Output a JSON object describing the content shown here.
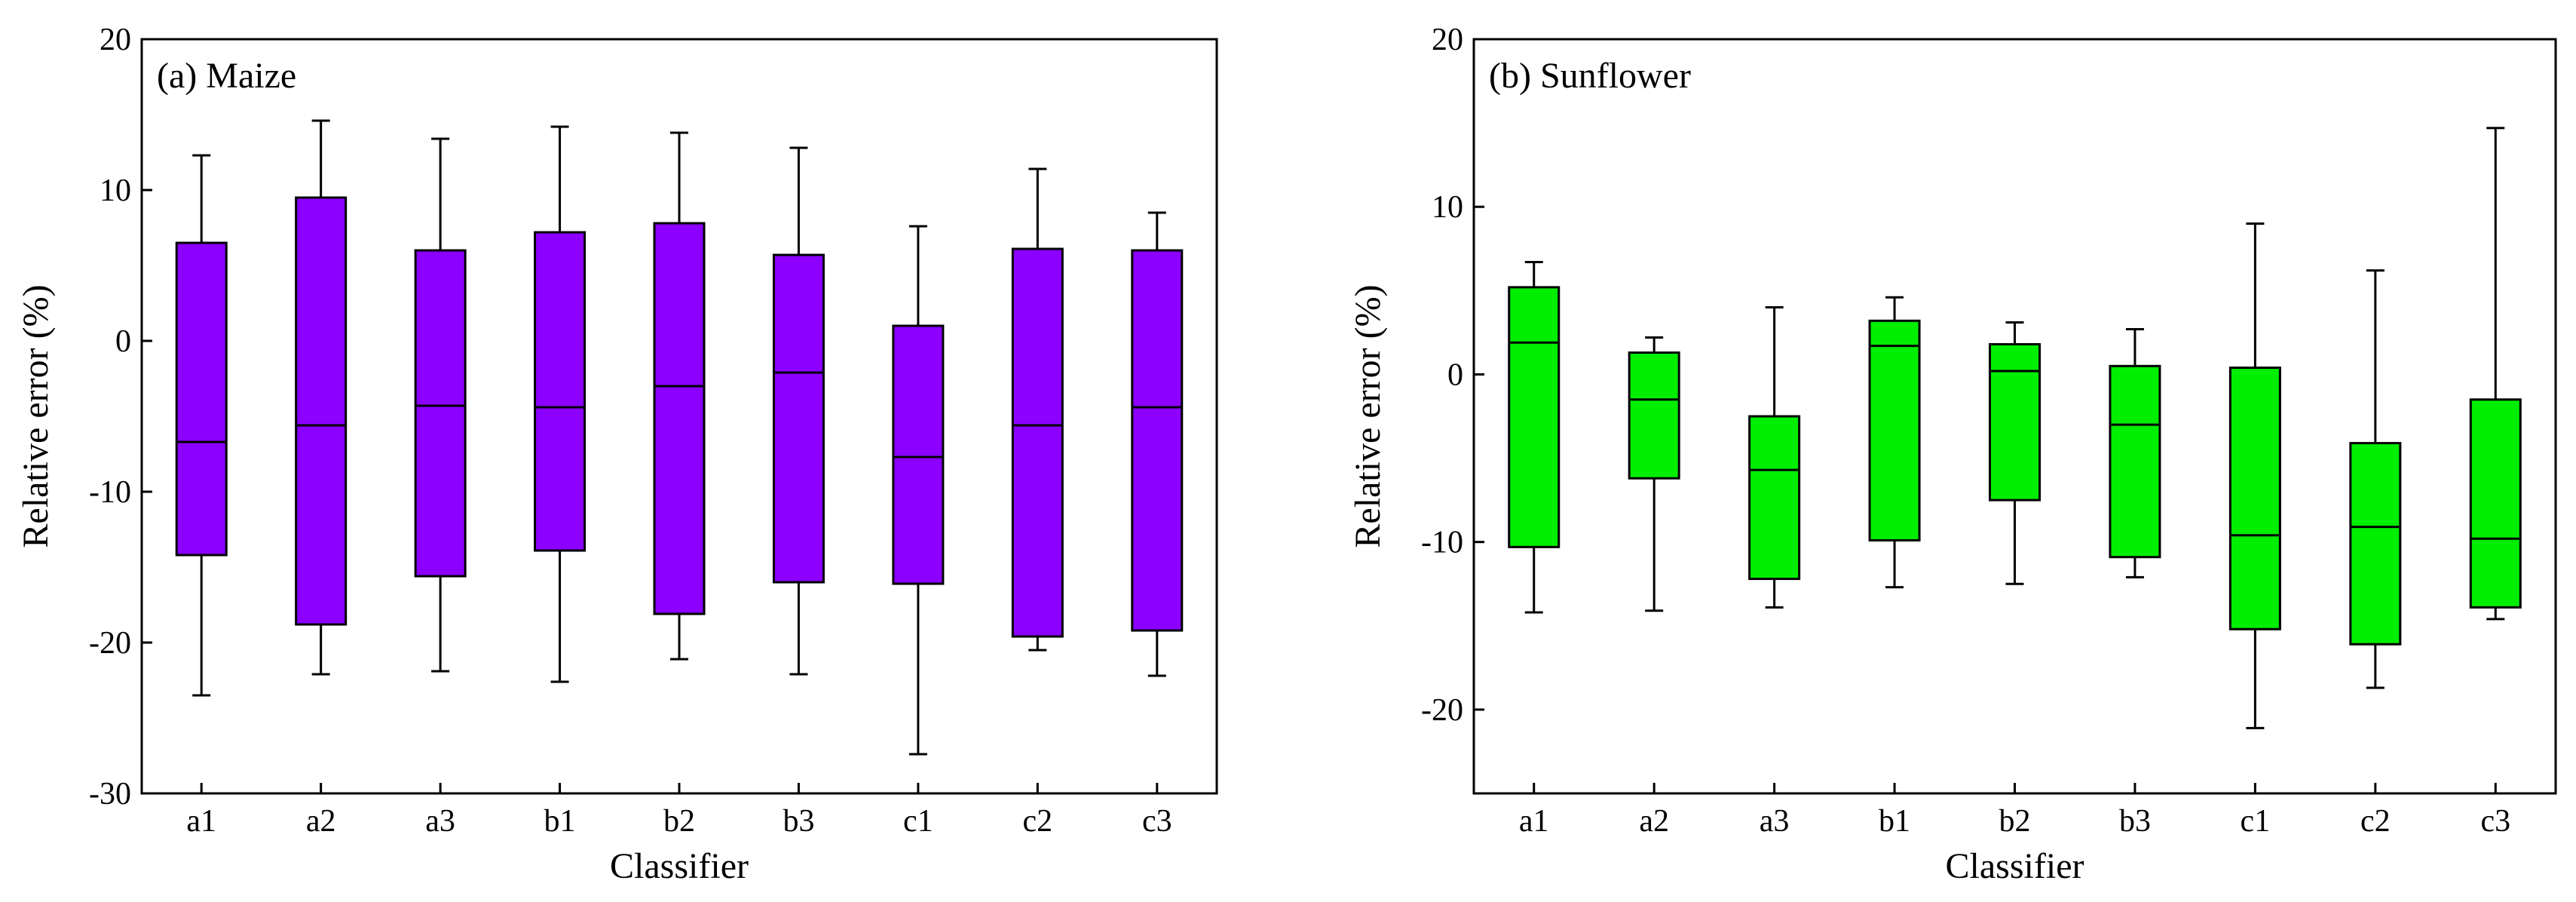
{
  "chart_data": [
    {
      "type": "box",
      "title": "(a) Maize",
      "xlabel": "Classifier",
      "ylabel": "Relative error (%)",
      "categories": [
        "a1",
        "a2",
        "a3",
        "b1",
        "b2",
        "b3",
        "c1",
        "c2",
        "c3"
      ],
      "ylim": [
        -30,
        20
      ],
      "yticks": [
        -30,
        -20,
        -10,
        0,
        10,
        20
      ],
      "fill_color": "#8B00FF",
      "boxes": [
        {
          "min": -23.5,
          "q1": -14.2,
          "median": -6.7,
          "q3": 6.5,
          "max": 12.3
        },
        {
          "min": -22.1,
          "q1": -18.8,
          "median": -5.6,
          "q3": 9.5,
          "max": 14.6
        },
        {
          "min": -21.9,
          "q1": -15.6,
          "median": -4.3,
          "q3": 6.0,
          "max": 13.4
        },
        {
          "min": -22.6,
          "q1": -13.9,
          "median": -4.4,
          "q3": 7.2,
          "max": 14.2
        },
        {
          "min": -21.1,
          "q1": -18.1,
          "median": -3.0,
          "q3": 7.8,
          "max": 13.8
        },
        {
          "min": -22.1,
          "q1": -16.0,
          "median": -2.1,
          "q3": 5.7,
          "max": 12.8
        },
        {
          "min": -27.4,
          "q1": -16.1,
          "median": -7.7,
          "q3": 1.0,
          "max": 7.6
        },
        {
          "min": -20.5,
          "q1": -19.6,
          "median": -5.6,
          "q3": 6.1,
          "max": 11.4
        },
        {
          "min": -22.2,
          "q1": -19.2,
          "median": -4.4,
          "q3": 6.0,
          "max": 8.5
        }
      ]
    },
    {
      "type": "box",
      "title": "(b) Sunflower",
      "xlabel": "Classifier",
      "ylabel": "Relative error (%)",
      "categories": [
        "a1",
        "a2",
        "a3",
        "b1",
        "b2",
        "b3",
        "c1",
        "c2",
        "c3"
      ],
      "ylim": [
        -25,
        20
      ],
      "yticks": [
        -20,
        -10,
        0,
        10,
        20
      ],
      "fill_color": "#00EE00",
      "boxes": [
        {
          "min": -14.2,
          "q1": -10.3,
          "median": 1.9,
          "q3": 5.2,
          "max": 6.7
        },
        {
          "min": -14.1,
          "q1": -6.2,
          "median": -1.5,
          "q3": 1.3,
          "max": 2.2
        },
        {
          "min": -13.9,
          "q1": -12.2,
          "median": -5.7,
          "q3": -2.5,
          "max": 4.0
        },
        {
          "min": -12.7,
          "q1": -9.9,
          "median": 1.7,
          "q3": 3.2,
          "max": 4.6
        },
        {
          "min": -12.5,
          "q1": -7.5,
          "median": 0.2,
          "q3": 1.8,
          "max": 3.1
        },
        {
          "min": -12.1,
          "q1": -10.9,
          "median": -3.0,
          "q3": 0.5,
          "max": 2.7
        },
        {
          "min": -21.1,
          "q1": -15.2,
          "median": -9.6,
          "q3": 0.4,
          "max": 9.0
        },
        {
          "min": -18.7,
          "q1": -16.1,
          "median": -9.1,
          "q3": -4.1,
          "max": 6.2
        },
        {
          "min": -14.6,
          "q1": -13.9,
          "median": -9.8,
          "q3": -1.5,
          "max": 14.7
        }
      ]
    }
  ]
}
